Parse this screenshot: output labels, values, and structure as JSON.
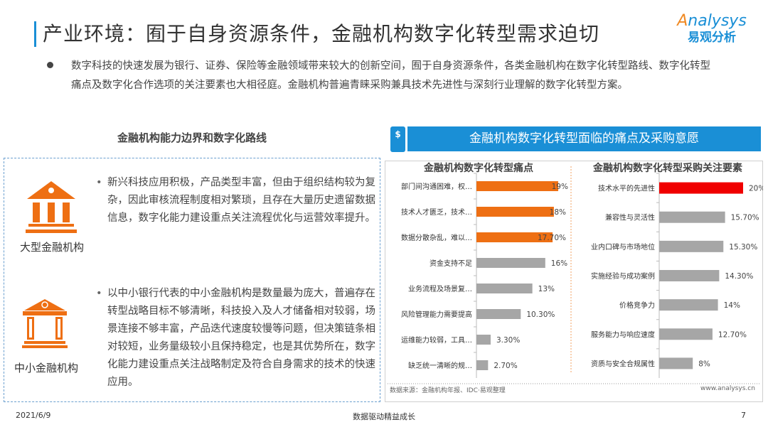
{
  "header": {
    "title": "产业环境：囿于自身资源条件，金融机构数字化转型需求迫切",
    "logo_en": "nalysys",
    "logo_en_mark": "A",
    "logo_cn": "易观分析"
  },
  "intro": "数字科技的快速发展为银行、证券、保险等金融领域带来较大的创新空间，囿于自身资源条件，各类金融机构在数字化转型路线、数字化转型痛点及数字化合作选项的关注要素也大相径庭。金融机构普遍青睐采购兼具技术先进性与深刻行业理解的数字化转型方案。",
  "left": {
    "heading": "金融机构能力边界和数字化路线",
    "items": [
      {
        "label": "大型金融机构",
        "icon": "bank-building-icon",
        "text": "新兴科技应用积极，产品类型丰富，但由于组织结构较为复杂，因此审核流程制度相对繁琐，且存在大量历史遗留数据信息，数字化能力建设重点关注流程优化与运营效率提升。"
      },
      {
        "label": "中小金融机构",
        "icon": "small-bank-building-icon",
        "text": "以中小银行代表的中小金融机构是数量最为庞大，普遍存在转型战略目标不够清晰，科技投入及人才储备相对较弱，场景连接不够丰富，产品迭代速度较慢等问题，但决策链条相对较短，业务量级较小且保持稳定，也是其优势所在，数字化能力建设重点关注战略制定及符合自身需求的技术的快速应用。"
      }
    ]
  },
  "right": {
    "heading": "金融机构数字化转型面临的痛点及采购意愿",
    "icon": "dollar-coin-icon",
    "source": "数据来源：金融机构年报、IDC·易观整理",
    "website": "www.analysys.cn"
  },
  "footer": {
    "date": "2021/6/9",
    "center": "数据驱动精益成长",
    "page": "7"
  },
  "colors": {
    "accent_blue": "#1a8fd6",
    "orange": "#ee6f13",
    "red": "#f00000",
    "gray_bar": "#a6a6a6"
  },
  "chart_data": [
    {
      "type": "bar",
      "orientation": "horizontal",
      "title": "金融机构数字化转型痛点",
      "categories": [
        "部门间沟通困难，权…",
        "技术人才匮乏，技术…",
        "数据分散杂乱，难以…",
        "资金支持不足",
        "业务流程及场景复…",
        "风险管理能力需要提高",
        "运维能力较弱，工具…",
        "缺乏统一清晰的规…"
      ],
      "values": [
        19,
        18,
        17.7,
        16,
        13,
        10.3,
        3.3,
        2.7
      ],
      "labels": [
        "19%",
        "18%",
        "17.70%",
        "16%",
        "13%",
        "10.30%",
        "3.30%",
        "2.70%"
      ],
      "highlight": [
        0,
        1,
        2
      ],
      "highlight_color": "#ee6f13",
      "xlim": [
        0,
        20
      ]
    },
    {
      "type": "bar",
      "orientation": "horizontal",
      "title": "金融机构数字化转型采购关注要素",
      "categories": [
        "技术水平的先进性",
        "兼容性与灵活性",
        "业内口碑与市场地位",
        "实施经验与成功案例",
        "价格竞争力",
        "服务能力与响应速度",
        "资质与安全合规属性"
      ],
      "values": [
        20,
        15.7,
        15.3,
        14.3,
        14,
        12.7,
        8
      ],
      "labels": [
        "20%",
        "15.70%",
        "15.30%",
        "14.30%",
        "14%",
        "12.70%",
        "8%"
      ],
      "highlight": [
        0
      ],
      "highlight_color": "#f00000",
      "xlim": [
        0,
        20
      ]
    }
  ]
}
